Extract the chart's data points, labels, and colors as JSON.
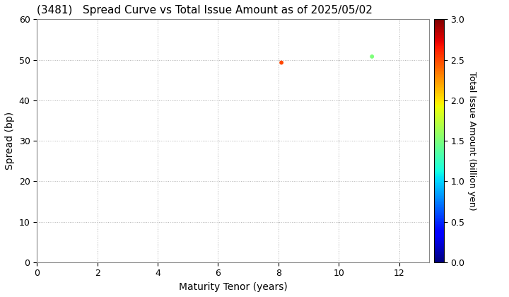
{
  "title": "(3481)   Spread Curve vs Total Issue Amount as of 2025/05/02",
  "xlabel": "Maturity Tenor (years)",
  "ylabel": "Spread (bp)",
  "colorbar_label": "Total Issue Amount (billion yen)",
  "xlim": [
    0,
    13
  ],
  "ylim": [
    0,
    60
  ],
  "xticks": [
    0,
    2,
    4,
    6,
    8,
    10,
    12
  ],
  "yticks": [
    0,
    10,
    20,
    30,
    40,
    50,
    60
  ],
  "cbar_min": 0.0,
  "cbar_max": 3.0,
  "cbar_ticks": [
    0.0,
    0.5,
    1.0,
    1.5,
    2.0,
    2.5,
    3.0
  ],
  "scatter_x": [
    8.1,
    11.1
  ],
  "scatter_y": [
    49.3,
    50.8
  ],
  "scatter_amounts": [
    2.5,
    1.5
  ],
  "scatter_marker_size": 18,
  "background_color": "#ffffff",
  "grid_color": "#aaaaaa",
  "grid_linestyle": "dotted",
  "title_fontsize": 11,
  "axis_label_fontsize": 10,
  "tick_labelsize": 9,
  "cbar_tick_labelsize": 9,
  "cbar_label_fontsize": 9
}
